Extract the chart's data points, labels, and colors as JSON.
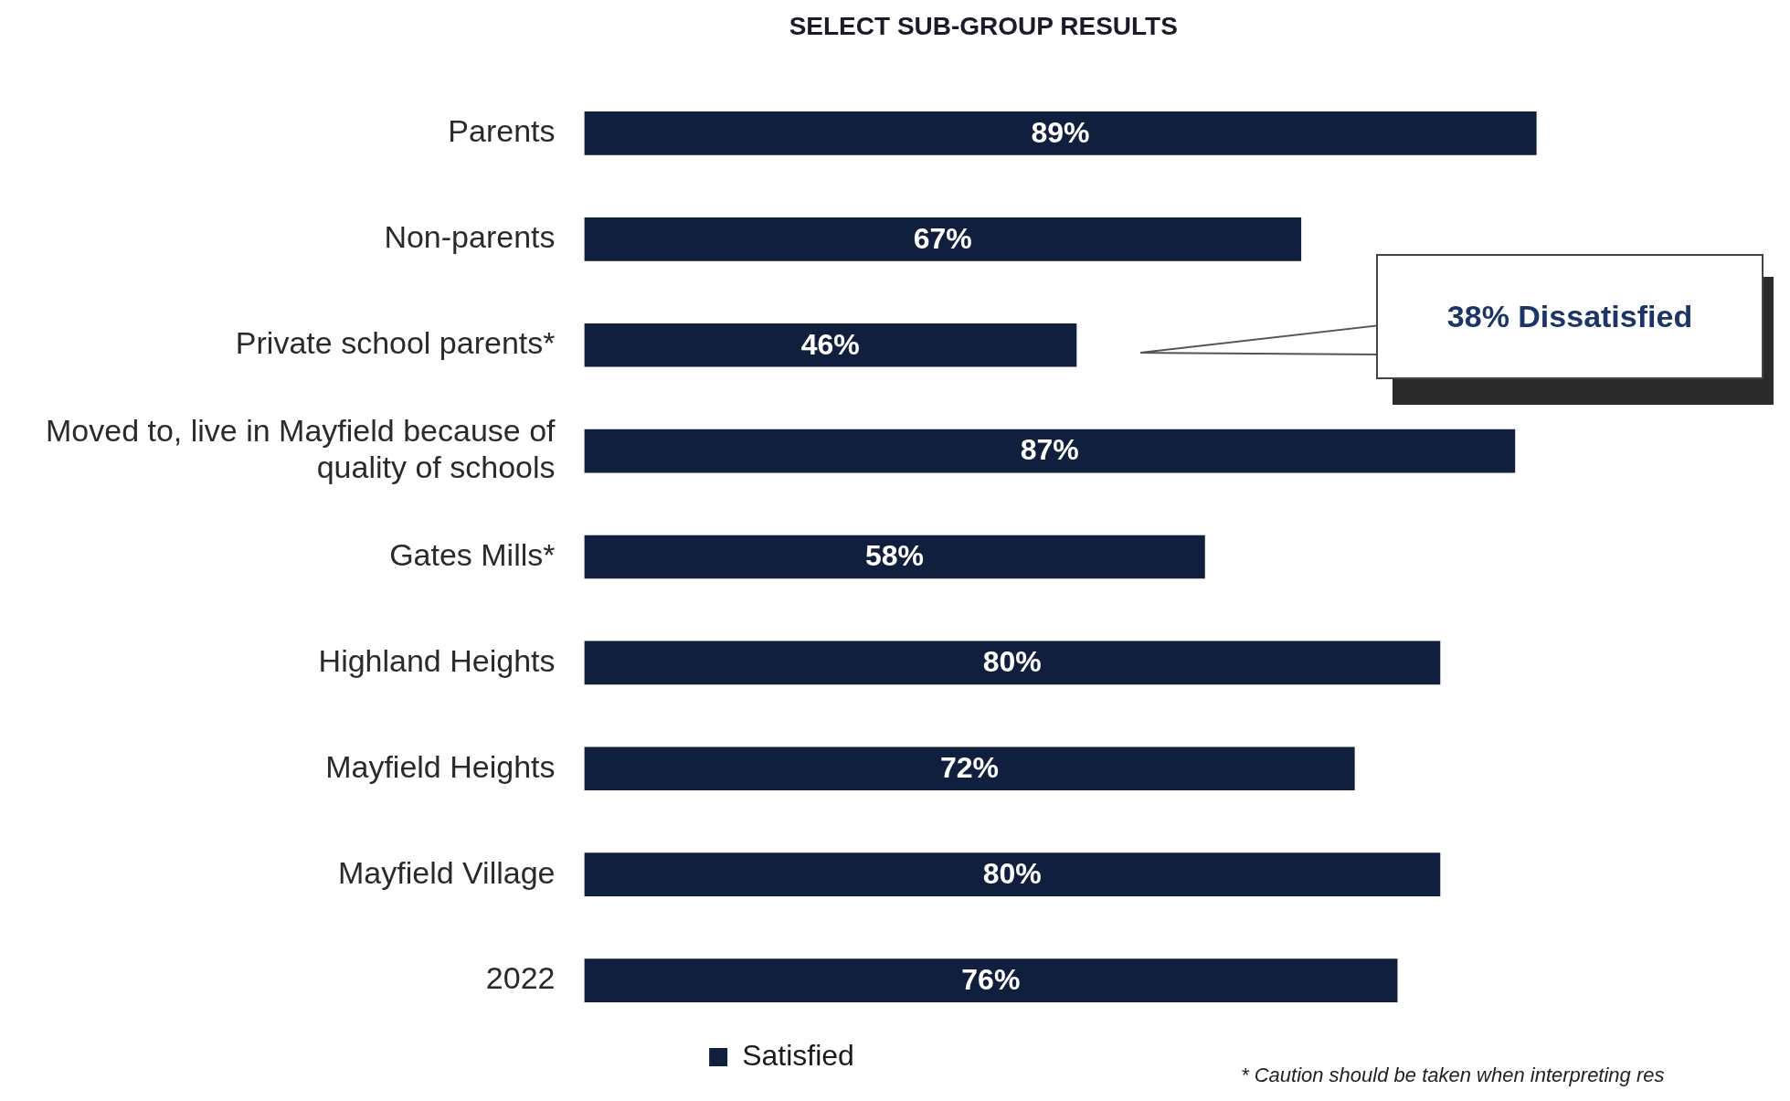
{
  "chart_data": {
    "type": "bar",
    "orientation": "horizontal",
    "title": "SELECT SUB-GROUP RESULTS",
    "categories": [
      "Parents",
      "Non-parents",
      "Private school parents*",
      "Moved to, live in Mayfield because of quality of schools",
      "Gates Mills*",
      "Highland Heights",
      "Mayfield Heights",
      "Mayfield Village",
      "2022"
    ],
    "series": [
      {
        "name": "Satisfied",
        "color": "#0f1f3d",
        "values": [
          89,
          67,
          46,
          87,
          58,
          80,
          72,
          80,
          76
        ],
        "value_labels": [
          "89%",
          "67%",
          "46%",
          "87%",
          "58%",
          "80%",
          "72%",
          "80%",
          "76%"
        ]
      }
    ],
    "grid": false,
    "legend": "bottom",
    "tick_labels": "y",
    "annotations": [
      "38% Dissatisfied",
      "* Caution should be taken when interpreting res"
    ]
  }
}
